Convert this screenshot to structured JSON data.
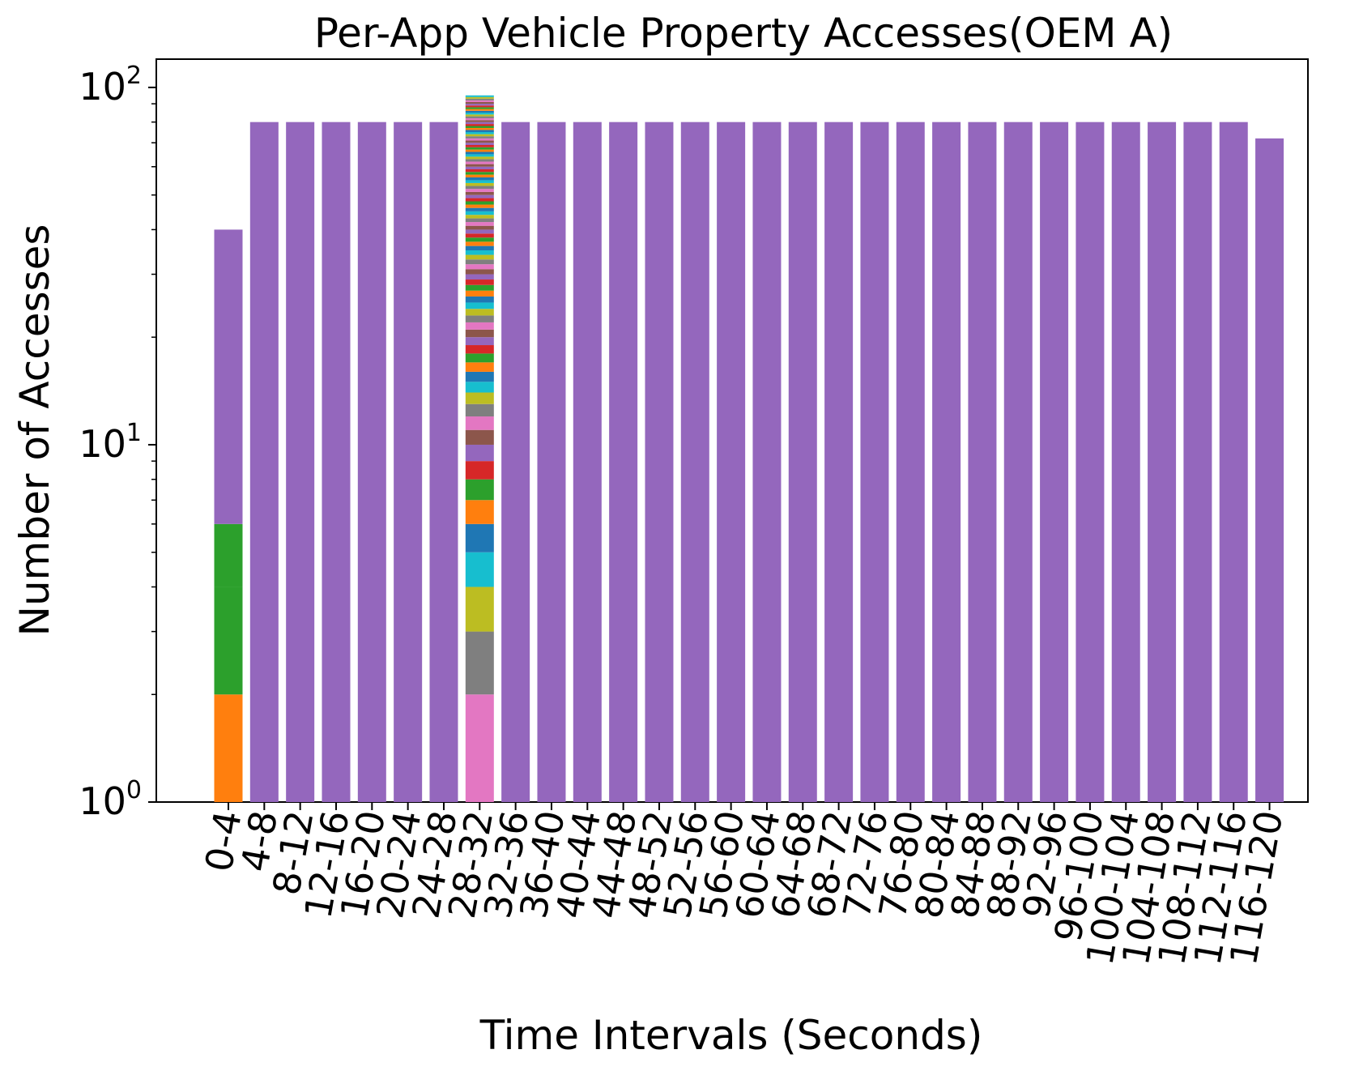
{
  "chart_data": {
    "type": "bar",
    "stacked": true,
    "title": "Per-App Vehicle Property Accesses(OEM A)",
    "xlabel": "Time Intervals (Seconds)",
    "ylabel": "Number of Accesses",
    "yscale": "log",
    "ylim": [
      1,
      120
    ],
    "yticks": [
      {
        "value": 1,
        "base": "10",
        "exp": "0"
      },
      {
        "value": 10,
        "base": "10",
        "exp": "1"
      },
      {
        "value": 100,
        "base": "10",
        "exp": "2"
      }
    ],
    "categories": [
      "0-4",
      "4-8",
      "8-12",
      "12-16",
      "16-20",
      "20-24",
      "24-28",
      "28-32",
      "32-36",
      "36-40",
      "40-44",
      "44-48",
      "48-52",
      "52-56",
      "56-60",
      "60-64",
      "64-68",
      "68-72",
      "72-76",
      "76-80",
      "80-84",
      "84-88",
      "88-92",
      "92-96",
      "96-100",
      "100-104",
      "104-108",
      "108-112",
      "112-116",
      "116-120"
    ],
    "totals": [
      40,
      80,
      80,
      80,
      80,
      80,
      80,
      95,
      80,
      80,
      80,
      80,
      80,
      80,
      80,
      80,
      80,
      80,
      80,
      80,
      80,
      80,
      80,
      80,
      80,
      80,
      80,
      80,
      80,
      72
    ],
    "stacks": [
      {
        "category": "0-4",
        "segments": [
          {
            "value": 2,
            "color": "#ff7f0e"
          },
          {
            "value": 2,
            "color": "#2ca02c"
          },
          {
            "value": 2,
            "color": "#2ca02c"
          },
          {
            "value": 34,
            "color": "#9467bd"
          }
        ]
      },
      {
        "category": "28-32",
        "segments": [
          {
            "value": 2,
            "color": "#e377c2"
          },
          {
            "value": 1,
            "color": "#7f7f7f"
          },
          {
            "value": 1,
            "color": "#bcbd22"
          },
          {
            "value": 1,
            "color": "#17becf"
          },
          {
            "value": 1,
            "color": "#1f77b4"
          },
          {
            "value": 1,
            "color": "#ff7f0e"
          },
          {
            "value": 1,
            "color": "#2ca02c"
          },
          {
            "value": 1,
            "color": "#d62728"
          },
          {
            "value": 1,
            "color": "#9467bd"
          },
          {
            "value": 1,
            "color": "#8c564b"
          },
          {
            "value": 1,
            "color": "#e377c2"
          },
          {
            "value": 1,
            "color": "#7f7f7f"
          },
          {
            "value": 1,
            "color": "#bcbd22"
          },
          {
            "value": 1,
            "color": "#17becf"
          },
          {
            "value": 1,
            "color": "#1f77b4"
          },
          {
            "value": 1,
            "color": "#ff7f0e"
          },
          {
            "value": 1,
            "color": "#2ca02c"
          },
          {
            "value": 1,
            "color": "#d62728"
          },
          {
            "value": 1,
            "color": "#9467bd"
          },
          {
            "value": 1,
            "color": "#8c564b"
          },
          {
            "value": 1,
            "color": "#e377c2"
          },
          {
            "value": 1,
            "color": "#7f7f7f"
          },
          {
            "value": 1,
            "color": "#bcbd22"
          },
          {
            "value": 1,
            "color": "#17becf"
          },
          {
            "value": 1,
            "color": "#1f77b4"
          },
          {
            "value": 1,
            "color": "#ff7f0e"
          },
          {
            "value": 1,
            "color": "#2ca02c"
          },
          {
            "value": 1,
            "color": "#d62728"
          },
          {
            "value": 1,
            "color": "#9467bd"
          },
          {
            "value": 1,
            "color": "#8c564b"
          },
          {
            "value": 1,
            "color": "#e377c2"
          },
          {
            "value": 1,
            "color": "#7f7f7f"
          },
          {
            "value": 1,
            "color": "#bcbd22"
          },
          {
            "value": 1,
            "color": "#17becf"
          },
          {
            "value": 1,
            "color": "#1f77b4"
          },
          {
            "value": 1,
            "color": "#ff7f0e"
          },
          {
            "value": 1,
            "color": "#2ca02c"
          },
          {
            "value": 1,
            "color": "#d62728"
          },
          {
            "value": 1,
            "color": "#9467bd"
          },
          {
            "value": 1,
            "color": "#8c564b"
          },
          {
            "value": 1,
            "color": "#e377c2"
          },
          {
            "value": 1,
            "color": "#7f7f7f"
          },
          {
            "value": 1,
            "color": "#bcbd22"
          },
          {
            "value": 1,
            "color": "#17becf"
          },
          {
            "value": 1,
            "color": "#1f77b4"
          },
          {
            "value": 1,
            "color": "#ff7f0e"
          },
          {
            "value": 1,
            "color": "#2ca02c"
          },
          {
            "value": 1,
            "color": "#d62728"
          },
          {
            "value": 1,
            "color": "#9467bd"
          },
          {
            "value": 1,
            "color": "#8c564b"
          },
          {
            "value": 1,
            "color": "#e377c2"
          },
          {
            "value": 1,
            "color": "#7f7f7f"
          },
          {
            "value": 1,
            "color": "#bcbd22"
          },
          {
            "value": 1,
            "color": "#17becf"
          },
          {
            "value": 1,
            "color": "#1f77b4"
          },
          {
            "value": 1,
            "color": "#ff7f0e"
          },
          {
            "value": 1,
            "color": "#2ca02c"
          },
          {
            "value": 1,
            "color": "#d62728"
          },
          {
            "value": 1,
            "color": "#9467bd"
          },
          {
            "value": 1,
            "color": "#8c564b"
          },
          {
            "value": 1,
            "color": "#e377c2"
          },
          {
            "value": 1,
            "color": "#7f7f7f"
          },
          {
            "value": 1,
            "color": "#bcbd22"
          },
          {
            "value": 1,
            "color": "#17becf"
          },
          {
            "value": 1,
            "color": "#1f77b4"
          },
          {
            "value": 1,
            "color": "#ff7f0e"
          },
          {
            "value": 1,
            "color": "#2ca02c"
          },
          {
            "value": 1,
            "color": "#d62728"
          },
          {
            "value": 1,
            "color": "#9467bd"
          },
          {
            "value": 1,
            "color": "#8c564b"
          },
          {
            "value": 1,
            "color": "#e377c2"
          },
          {
            "value": 1,
            "color": "#7f7f7f"
          },
          {
            "value": 1,
            "color": "#bcbd22"
          },
          {
            "value": 1,
            "color": "#17becf"
          },
          {
            "value": 1,
            "color": "#1f77b4"
          },
          {
            "value": 1,
            "color": "#ff7f0e"
          },
          {
            "value": 1,
            "color": "#2ca02c"
          },
          {
            "value": 1,
            "color": "#d62728"
          },
          {
            "value": 1,
            "color": "#9467bd"
          },
          {
            "value": 1,
            "color": "#8c564b"
          },
          {
            "value": 1,
            "color": "#e377c2"
          },
          {
            "value": 1,
            "color": "#7f7f7f"
          },
          {
            "value": 1,
            "color": "#bcbd22"
          },
          {
            "value": 1,
            "color": "#17becf"
          },
          {
            "value": 1,
            "color": "#1f77b4"
          },
          {
            "value": 1,
            "color": "#ff7f0e"
          },
          {
            "value": 1,
            "color": "#2ca02c"
          },
          {
            "value": 1,
            "color": "#d62728"
          },
          {
            "value": 1,
            "color": "#9467bd"
          },
          {
            "value": 1,
            "color": "#8c564b"
          },
          {
            "value": 1,
            "color": "#e377c2"
          },
          {
            "value": 1,
            "color": "#7f7f7f"
          },
          {
            "value": 1,
            "color": "#bcbd22"
          },
          {
            "value": 1,
            "color": "#17becf"
          }
        ]
      }
    ],
    "default_color": "#9467bd",
    "grid": false,
    "legend": "none"
  }
}
